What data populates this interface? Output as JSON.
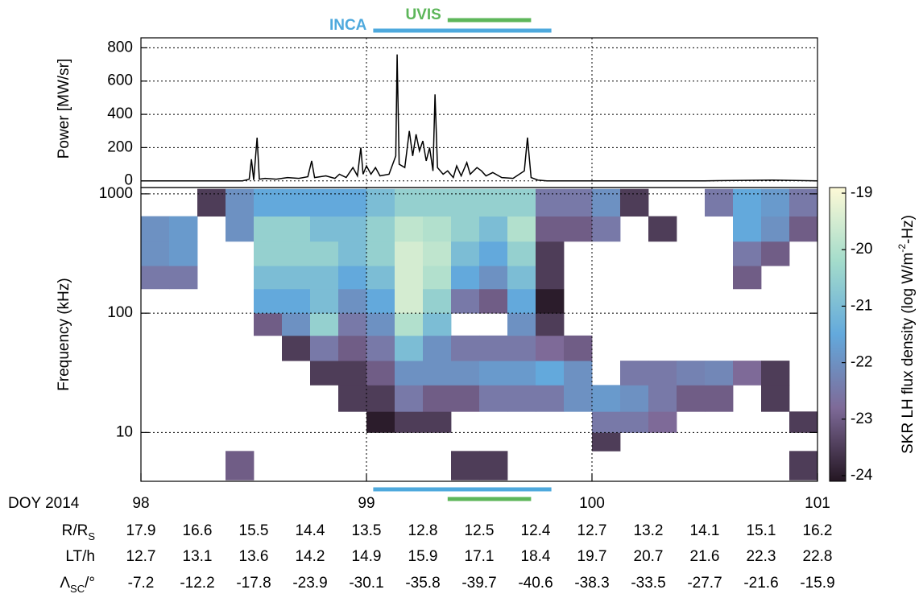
{
  "chart_data": [
    {
      "type": "line",
      "ylabel": "Power [MW/sr]",
      "color": "#000000",
      "x": [
        98,
        98.45,
        98.48,
        98.49,
        98.5,
        98.515,
        98.525,
        98.55,
        98.6,
        98.65,
        98.7,
        98.74,
        98.757,
        98.77,
        98.82,
        98.86,
        98.88,
        98.91,
        98.94,
        98.96,
        98.975,
        98.985,
        99.0,
        99.02,
        99.04,
        99.06,
        99.1,
        99.13,
        99.136,
        99.145,
        99.17,
        99.19,
        99.205,
        99.22,
        99.235,
        99.25,
        99.265,
        99.28,
        99.295,
        99.304,
        99.315,
        99.34,
        99.36,
        99.385,
        99.4,
        99.42,
        99.445,
        99.46,
        99.49,
        99.51,
        99.53,
        99.56,
        99.6,
        99.65,
        99.7,
        99.714,
        99.73,
        99.76,
        99.8,
        100.5,
        100.8,
        101
      ],
      "values": [
        0,
        0,
        10,
        130,
        5,
        260,
        10,
        15,
        10,
        20,
        15,
        25,
        120,
        20,
        30,
        15,
        40,
        20,
        80,
        30,
        200,
        40,
        90,
        40,
        80,
        30,
        40,
        150,
        760,
        100,
        80,
        300,
        150,
        280,
        180,
        240,
        120,
        200,
        60,
        520,
        80,
        40,
        60,
        20,
        90,
        30,
        110,
        40,
        80,
        60,
        30,
        50,
        20,
        15,
        60,
        260,
        20,
        5,
        0,
        0,
        5,
        0
      ],
      "xlim": [
        98,
        101
      ],
      "xticks": [
        98,
        99,
        100,
        101
      ],
      "ylim": [
        -40,
        860
      ],
      "yticks": [
        0,
        200,
        400,
        600,
        800
      ],
      "grid": true
    },
    {
      "type": "heatmap",
      "ylabel": "Frequency (kHz)",
      "xlabel": "DOY 2014",
      "log_y": true,
      "grid": true,
      "xlim": [
        98,
        101
      ],
      "xticks": [
        98,
        99,
        100,
        101
      ],
      "ylim": [
        3.9,
        1130
      ],
      "yticks": [
        10,
        100,
        1000
      ],
      "x_bins": [
        98,
        98.125,
        98.25,
        98.375,
        98.5,
        98.625,
        98.75,
        98.875,
        99,
        99.125,
        99.25,
        99.375,
        99.5,
        99.625,
        99.75,
        99.875,
        100,
        100.125,
        100.25,
        100.375,
        100.5,
        100.625,
        100.75,
        100.875,
        101
      ],
      "y_bins": [
        4,
        7,
        10,
        15,
        25,
        40,
        65,
        100,
        160,
        250,
        400,
        650,
        1100
      ],
      "z": [
        [
          null,
          null,
          null,
          null,
          null,
          null,
          null,
          null,
          -22.5,
          -22,
          -22,
          null
        ],
        [
          null,
          null,
          null,
          null,
          null,
          null,
          null,
          null,
          -22.5,
          -21.8,
          -21.8,
          null
        ],
        [
          null,
          null,
          null,
          null,
          null,
          null,
          null,
          null,
          null,
          null,
          null,
          -23.5
        ],
        [
          -23,
          null,
          null,
          null,
          null,
          null,
          null,
          null,
          null,
          null,
          -22,
          -22
        ],
        [
          null,
          null,
          null,
          null,
          null,
          null,
          -23,
          -21.5,
          -21,
          -20.5,
          -20.5,
          -21.5
        ],
        [
          null,
          null,
          null,
          null,
          null,
          -23.5,
          -22,
          -21.5,
          -21,
          -20.5,
          -20.5,
          -21.5
        ],
        [
          null,
          null,
          null,
          null,
          -23.5,
          -22.5,
          -20.5,
          -21,
          -21,
          -20.5,
          -21,
          -21.5
        ],
        [
          null,
          null,
          null,
          -23.5,
          -23.5,
          -23,
          -22.5,
          -22,
          -21.5,
          -21,
          -21,
          -21.5
        ],
        [
          null,
          null,
          -24,
          -23.5,
          -23,
          -22.5,
          -22,
          -21.5,
          -21,
          -20.5,
          -20.5,
          -21
        ],
        [
          null,
          null,
          -23.5,
          -22.5,
          -22,
          -21,
          -20,
          -19.5,
          -19.5,
          -19.5,
          -19.8,
          -20.5
        ],
        [
          null,
          null,
          -23.5,
          -23,
          -22,
          -22,
          -21,
          -20.5,
          -20,
          -19.8,
          -20,
          -20.5
        ],
        [
          -23.5,
          null,
          null,
          -23,
          -22,
          -22.5,
          null,
          -22.5,
          -21.5,
          -21,
          -20.5,
          -20.5
        ],
        [
          -23.5,
          null,
          null,
          -22.5,
          -21.8,
          -22.5,
          null,
          -23,
          -22,
          -21.5,
          -21,
          -20.5
        ],
        [
          null,
          null,
          null,
          -22.5,
          -21.8,
          -22.5,
          -22,
          -21.5,
          -21,
          -20.5,
          -20,
          -20.5
        ],
        [
          null,
          null,
          null,
          -22.5,
          -21.5,
          -22.8,
          -23.5,
          -24,
          -23.5,
          -23.5,
          -23,
          -22.5
        ],
        [
          null,
          null,
          null,
          -22,
          -22,
          -23,
          null,
          null,
          null,
          null,
          -23,
          -22.5
        ],
        [
          null,
          -23.5,
          -22.5,
          -21.8,
          null,
          null,
          null,
          null,
          null,
          null,
          -22.5,
          -22
        ],
        [
          null,
          null,
          -22.5,
          -22,
          -22.5,
          null,
          null,
          null,
          null,
          null,
          null,
          -23.5
        ],
        [
          null,
          null,
          -22.8,
          -22.5,
          -22.5,
          null,
          null,
          null,
          null,
          null,
          -23.5,
          null
        ],
        [
          null,
          null,
          null,
          -23,
          -22.3,
          null,
          null,
          null,
          null,
          null,
          null,
          null
        ],
        [
          null,
          null,
          null,
          -23,
          -22.2,
          null,
          null,
          null,
          null,
          null,
          null,
          -22.5
        ],
        [
          null,
          null,
          null,
          null,
          -22.8,
          null,
          null,
          null,
          -23,
          -22.5,
          -21.5,
          -21.5
        ],
        [
          null,
          null,
          null,
          -23.5,
          -23.5,
          null,
          null,
          null,
          null,
          -23,
          -22,
          -21.8
        ],
        [
          -23.5,
          null,
          -23.5,
          null,
          null,
          null,
          null,
          null,
          null,
          null,
          -23,
          -22.5
        ]
      ],
      "zlim": [
        -24.1,
        -18.9
      ],
      "zticks": [
        -24,
        -23,
        -22,
        -21,
        -20,
        -19
      ],
      "colormap": [
        "#241622",
        "#7e6a98",
        "#63a9dc",
        "#a4dccb",
        "#fdf9d6"
      ],
      "colorbar_label": {
        "main": "SKR LH flux density (log W/m",
        "sup": "-2",
        "rest": "-Hz)"
      }
    }
  ],
  "intervals": [
    {
      "name": "INCA",
      "color": "#4ea9dd",
      "start": 99.03,
      "end": 99.82
    },
    {
      "name": "UVIS",
      "color": "#5db65a",
      "start": 99.36,
      "end": 99.73
    }
  ],
  "ephemeris": {
    "rows": [
      {
        "label": {
          "main": "R/R",
          "sub": "S"
        },
        "values": [
          17.9,
          16.6,
          15.5,
          14.4,
          13.5,
          12.8,
          12.5,
          12.4,
          12.7,
          13.2,
          14.1,
          15.1,
          16.2
        ]
      },
      {
        "label": {
          "main": "LT/h"
        },
        "values": [
          12.7,
          13.1,
          13.6,
          14.2,
          14.9,
          15.9,
          17.1,
          18.4,
          19.7,
          20.7,
          21.6,
          22.3,
          22.8
        ]
      },
      {
        "label": {
          "main": "Λ",
          "sub": "SC",
          "rest": "/°"
        },
        "values": [
          -7.2,
          -12.2,
          -17.8,
          -23.9,
          -30.1,
          -35.8,
          -39.7,
          -40.6,
          -38.3,
          -33.5,
          -27.7,
          -21.6,
          -15.9
        ]
      }
    ]
  }
}
